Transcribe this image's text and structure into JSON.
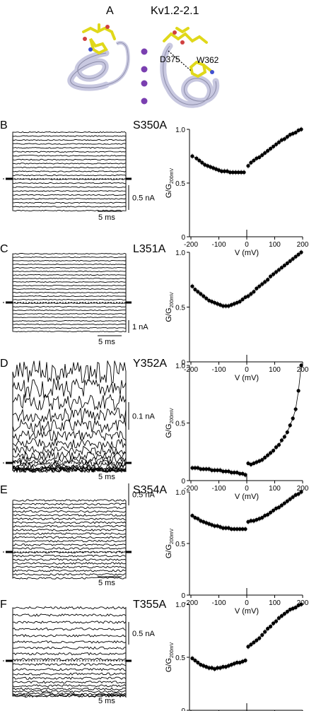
{
  "header": {
    "panel_letter": "A",
    "title": "Kv1.2-2.1"
  },
  "structure_labels": {
    "left_residue": "D375",
    "right_residue": "W362"
  },
  "colors": {
    "helix": "#c8c8e0",
    "sticks": "#e8e020",
    "ions": "#7a3fb0",
    "traces": "#000000"
  },
  "panels": [
    {
      "letter": "B",
      "mutant": "S350A",
      "scale_current": "0.5 nA",
      "scale_time": "5 ms"
    },
    {
      "letter": "C",
      "mutant": "L351A",
      "scale_current": "1 nA",
      "scale_time": "5 ms"
    },
    {
      "letter": "D",
      "mutant": "Y352A",
      "scale_current": "0.1 nA",
      "scale_time": "5 ms"
    },
    {
      "letter": "E",
      "mutant": "S354A",
      "scale_current": "0.5 nA",
      "scale_time": "5 ms"
    },
    {
      "letter": "F",
      "mutant": "T355A",
      "scale_current": "0.5 nA",
      "scale_time": "5 ms"
    }
  ],
  "axis_text": {
    "y_label_main": "G/G",
    "y_label_sub": "200mV",
    "x_label": "V (mV)",
    "y_ticks": [
      "0",
      "0.5",
      "1.0"
    ],
    "x_ticks": [
      "-200",
      "-100",
      "0",
      "100",
      "200"
    ]
  },
  "chart_data": [
    {
      "type": "scatter",
      "panel": "S350A",
      "xlabel": "V (mV)",
      "ylabel": "G/G200mV",
      "xlim": [
        -200,
        200
      ],
      "ylim": [
        0,
        1.0
      ],
      "x": [
        -195,
        -180,
        -170,
        -160,
        -150,
        -140,
        -130,
        -120,
        -110,
        -100,
        -90,
        -80,
        -70,
        -60,
        -50,
        -40,
        -30,
        -20,
        -10,
        5,
        15,
        25,
        35,
        45,
        55,
        65,
        75,
        85,
        95,
        105,
        115,
        125,
        135,
        145,
        155,
        165,
        175,
        185,
        195
      ],
      "y": [
        0.75,
        0.73,
        0.71,
        0.69,
        0.67,
        0.66,
        0.65,
        0.64,
        0.63,
        0.62,
        0.61,
        0.61,
        0.61,
        0.6,
        0.6,
        0.6,
        0.6,
        0.6,
        0.6,
        0.66,
        0.69,
        0.71,
        0.73,
        0.74,
        0.76,
        0.78,
        0.8,
        0.82,
        0.84,
        0.86,
        0.88,
        0.9,
        0.91,
        0.93,
        0.95,
        0.96,
        0.97,
        0.99,
        1.0
      ]
    },
    {
      "type": "scatter",
      "panel": "L351A",
      "xlabel": "V (mV)",
      "ylabel": "G/G200mV",
      "xlim": [
        -200,
        200
      ],
      "ylim": [
        0,
        1.0
      ],
      "x": [
        -195,
        -185,
        -175,
        -165,
        -155,
        -145,
        -135,
        -125,
        -115,
        -105,
        -95,
        -85,
        -75,
        -65,
        -55,
        -45,
        -35,
        -25,
        -15,
        -5,
        5,
        15,
        25,
        35,
        45,
        55,
        65,
        75,
        85,
        95,
        105,
        115,
        125,
        135,
        145,
        155,
        165,
        175,
        185,
        195
      ],
      "y": [
        0.69,
        0.66,
        0.64,
        0.62,
        0.6,
        0.58,
        0.56,
        0.55,
        0.54,
        0.53,
        0.52,
        0.51,
        0.51,
        0.51,
        0.52,
        0.53,
        0.54,
        0.55,
        0.57,
        0.59,
        0.6,
        0.62,
        0.64,
        0.67,
        0.69,
        0.71,
        0.73,
        0.75,
        0.78,
        0.8,
        0.82,
        0.84,
        0.86,
        0.88,
        0.9,
        0.92,
        0.94,
        0.96,
        0.98,
        1.0
      ]
    },
    {
      "type": "scatter",
      "panel": "Y352A",
      "xlabel": "V (mV)",
      "ylabel": "G/G200mV",
      "xlim": [
        -200,
        200
      ],
      "ylim": [
        0,
        1.0
      ],
      "x": [
        -195,
        -185,
        -175,
        -165,
        -155,
        -145,
        -135,
        -125,
        -115,
        -105,
        -95,
        -85,
        -75,
        -65,
        -55,
        -45,
        -35,
        -25,
        -15,
        -5,
        5,
        15,
        25,
        35,
        45,
        55,
        65,
        75,
        85,
        95,
        105,
        115,
        125,
        135,
        145,
        155,
        165,
        175,
        185,
        195
      ],
      "y": [
        0.11,
        0.11,
        0.11,
        0.1,
        0.1,
        0.1,
        0.1,
        0.09,
        0.09,
        0.09,
        0.09,
        0.08,
        0.08,
        0.08,
        0.07,
        0.07,
        0.07,
        0.06,
        0.06,
        0.05,
        0.15,
        0.14,
        0.15,
        0.16,
        0.17,
        0.18,
        0.2,
        0.22,
        0.24,
        0.26,
        0.29,
        0.31,
        0.35,
        0.38,
        0.42,
        0.48,
        0.54,
        0.62,
        0.78,
        1.0
      ]
    },
    {
      "type": "scatter",
      "panel": "S354A",
      "xlabel": "V (mV)",
      "ylabel": "G/G200mV",
      "xlim": [
        -200,
        200
      ],
      "ylim": [
        0,
        1.0
      ],
      "x": [
        -195,
        -185,
        -175,
        -165,
        -155,
        -145,
        -135,
        -125,
        -115,
        -105,
        -95,
        -85,
        -75,
        -65,
        -55,
        -45,
        -35,
        -25,
        -15,
        -5,
        5,
        15,
        25,
        35,
        45,
        55,
        65,
        75,
        85,
        95,
        105,
        115,
        125,
        135,
        145,
        155,
        165,
        175,
        185,
        195
      ],
      "y": [
        0.77,
        0.75,
        0.74,
        0.72,
        0.71,
        0.7,
        0.69,
        0.68,
        0.67,
        0.67,
        0.66,
        0.65,
        0.65,
        0.65,
        0.64,
        0.64,
        0.64,
        0.64,
        0.64,
        0.64,
        0.71,
        0.72,
        0.72,
        0.73,
        0.74,
        0.75,
        0.77,
        0.78,
        0.8,
        0.82,
        0.84,
        0.85,
        0.87,
        0.89,
        0.91,
        0.93,
        0.95,
        0.97,
        0.98,
        1.0
      ]
    },
    {
      "type": "scatter",
      "panel": "T355A",
      "xlabel": "V (mV)",
      "ylabel": "G/G200mV",
      "xlim": [
        -200,
        200
      ],
      "ylim": [
        0,
        1.0
      ],
      "x": [
        -195,
        -185,
        -175,
        -165,
        -155,
        -145,
        -135,
        -125,
        -115,
        -105,
        -95,
        -85,
        -75,
        -65,
        -55,
        -45,
        -35,
        -25,
        -15,
        -5,
        5,
        15,
        25,
        35,
        45,
        55,
        65,
        75,
        85,
        95,
        105,
        115,
        125,
        135,
        145,
        155,
        165,
        175,
        185,
        195
      ],
      "y": [
        0.49,
        0.47,
        0.45,
        0.43,
        0.42,
        0.41,
        0.4,
        0.4,
        0.39,
        0.4,
        0.4,
        0.41,
        0.41,
        0.42,
        0.43,
        0.44,
        0.45,
        0.45,
        0.46,
        0.47,
        0.6,
        0.62,
        0.64,
        0.66,
        0.68,
        0.71,
        0.74,
        0.77,
        0.79,
        0.82,
        0.84,
        0.87,
        0.89,
        0.91,
        0.93,
        0.95,
        0.96,
        0.97,
        0.99,
        1.0
      ]
    }
  ]
}
